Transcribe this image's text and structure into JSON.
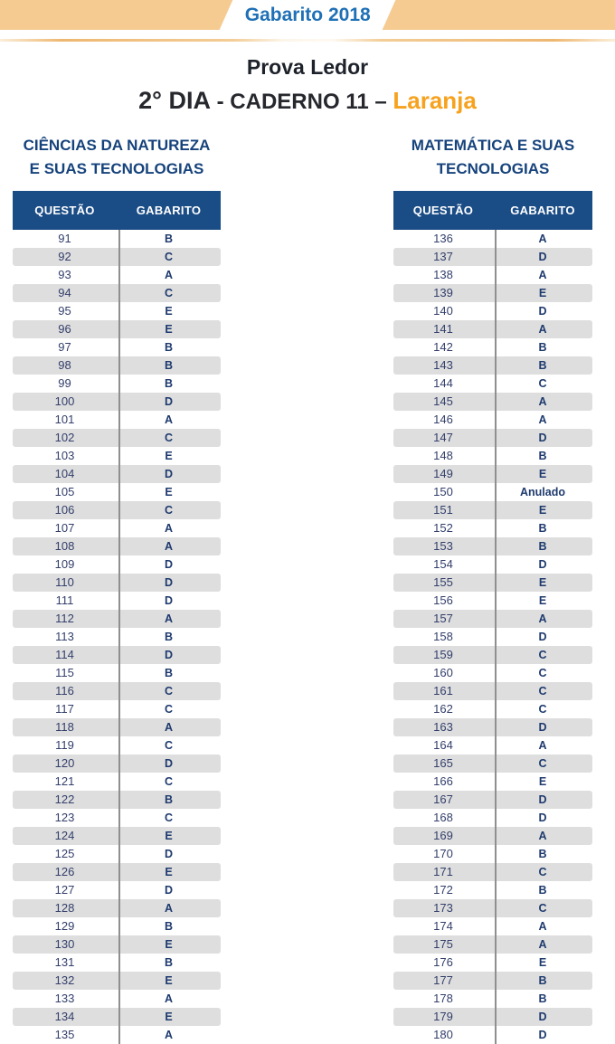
{
  "banner": {
    "title": "Gabarito 2018"
  },
  "header": {
    "title": "Prova Ledor",
    "day": "2° DIA",
    "sep1": " - ",
    "caderno": "CADERNO 11",
    "sep2": " – ",
    "color_name": "Laranja"
  },
  "colors": {
    "banner_orange": "#F5CB92",
    "banner_text_blue": "#1F70B6",
    "section_navy": "#16437C",
    "table_header_navy": "#1A4C86",
    "row_alt_gray": "#DEDEDE",
    "answer_navy": "#1E3A6E",
    "laranja_accent": "#F6A21E"
  },
  "tables": [
    {
      "title_line1": "CIÊNCIAS DA NATUREZA",
      "title_line2": "E SUAS TECNOLOGIAS",
      "columns": [
        "QUESTÃO",
        "GABARITO"
      ],
      "rows": [
        {
          "q": "91",
          "a": "B"
        },
        {
          "q": "92",
          "a": "C"
        },
        {
          "q": "93",
          "a": "A"
        },
        {
          "q": "94",
          "a": "C"
        },
        {
          "q": "95",
          "a": "E"
        },
        {
          "q": "96",
          "a": "E"
        },
        {
          "q": "97",
          "a": "B"
        },
        {
          "q": "98",
          "a": "B"
        },
        {
          "q": "99",
          "a": "B"
        },
        {
          "q": "100",
          "a": "D"
        },
        {
          "q": "101",
          "a": "A"
        },
        {
          "q": "102",
          "a": "C"
        },
        {
          "q": "103",
          "a": "E"
        },
        {
          "q": "104",
          "a": "D"
        },
        {
          "q": "105",
          "a": "E"
        },
        {
          "q": "106",
          "a": "C"
        },
        {
          "q": "107",
          "a": "A"
        },
        {
          "q": "108",
          "a": "A"
        },
        {
          "q": "109",
          "a": "D"
        },
        {
          "q": "110",
          "a": "D"
        },
        {
          "q": "111",
          "a": "D"
        },
        {
          "q": "112",
          "a": "A"
        },
        {
          "q": "113",
          "a": "B"
        },
        {
          "q": "114",
          "a": "D"
        },
        {
          "q": "115",
          "a": "B"
        },
        {
          "q": "116",
          "a": "C"
        },
        {
          "q": "117",
          "a": "C"
        },
        {
          "q": "118",
          "a": "A"
        },
        {
          "q": "119",
          "a": "C"
        },
        {
          "q": "120",
          "a": "D"
        },
        {
          "q": "121",
          "a": "C"
        },
        {
          "q": "122",
          "a": "B"
        },
        {
          "q": "123",
          "a": "C"
        },
        {
          "q": "124",
          "a": "E"
        },
        {
          "q": "125",
          "a": "D"
        },
        {
          "q": "126",
          "a": "E"
        },
        {
          "q": "127",
          "a": "D"
        },
        {
          "q": "128",
          "a": "A"
        },
        {
          "q": "129",
          "a": "B"
        },
        {
          "q": "130",
          "a": "E"
        },
        {
          "q": "131",
          "a": "B"
        },
        {
          "q": "132",
          "a": "E"
        },
        {
          "q": "133",
          "a": "A"
        },
        {
          "q": "134",
          "a": "E"
        },
        {
          "q": "135",
          "a": "A"
        }
      ]
    },
    {
      "title_line1": "MATEMÁTICA E SUAS",
      "title_line2": "TECNOLOGIAS",
      "columns": [
        "QUESTÃO",
        "GABARITO"
      ],
      "rows": [
        {
          "q": "136",
          "a": "A"
        },
        {
          "q": "137",
          "a": "D"
        },
        {
          "q": "138",
          "a": "A"
        },
        {
          "q": "139",
          "a": "E"
        },
        {
          "q": "140",
          "a": "D"
        },
        {
          "q": "141",
          "a": "A"
        },
        {
          "q": "142",
          "a": "B"
        },
        {
          "q": "143",
          "a": "B"
        },
        {
          "q": "144",
          "a": "C"
        },
        {
          "q": "145",
          "a": "A"
        },
        {
          "q": "146",
          "a": "A"
        },
        {
          "q": "147",
          "a": "D"
        },
        {
          "q": "148",
          "a": "B"
        },
        {
          "q": "149",
          "a": "E"
        },
        {
          "q": "150",
          "a": "Anulado"
        },
        {
          "q": "151",
          "a": "E"
        },
        {
          "q": "152",
          "a": "B"
        },
        {
          "q": "153",
          "a": "B"
        },
        {
          "q": "154",
          "a": "D"
        },
        {
          "q": "155",
          "a": "E"
        },
        {
          "q": "156",
          "a": "E"
        },
        {
          "q": "157",
          "a": "A"
        },
        {
          "q": "158",
          "a": "D"
        },
        {
          "q": "159",
          "a": "C"
        },
        {
          "q": "160",
          "a": "C"
        },
        {
          "q": "161",
          "a": "C"
        },
        {
          "q": "162",
          "a": "C"
        },
        {
          "q": "163",
          "a": "D"
        },
        {
          "q": "164",
          "a": "A"
        },
        {
          "q": "165",
          "a": "C"
        },
        {
          "q": "166",
          "a": "E"
        },
        {
          "q": "167",
          "a": "D"
        },
        {
          "q": "168",
          "a": "D"
        },
        {
          "q": "169",
          "a": "A"
        },
        {
          "q": "170",
          "a": "B"
        },
        {
          "q": "171",
          "a": "C"
        },
        {
          "q": "172",
          "a": "B"
        },
        {
          "q": "173",
          "a": "C"
        },
        {
          "q": "174",
          "a": "A"
        },
        {
          "q": "175",
          "a": "A"
        },
        {
          "q": "176",
          "a": "E"
        },
        {
          "q": "177",
          "a": "B"
        },
        {
          "q": "178",
          "a": "B"
        },
        {
          "q": "179",
          "a": "D"
        },
        {
          "q": "180",
          "a": "D"
        }
      ]
    }
  ]
}
